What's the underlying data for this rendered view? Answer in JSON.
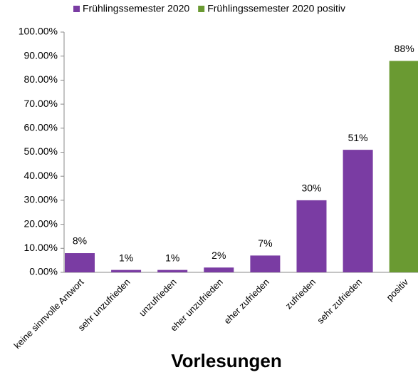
{
  "chart_data": {
    "type": "bar",
    "x_label": "Vorlesungen",
    "categories": [
      "keine sinnvolle Antwort",
      "sehr unzufrieden",
      "unzufrieden",
      "eher unzufrieden",
      "eher zufrieden",
      "zufrieden",
      "sehr zufrieden",
      "positiv"
    ],
    "series": [
      {
        "name": "Frühlingssemester 2020",
        "color": "#7a3ca3",
        "values": [
          8,
          1,
          1,
          2,
          7,
          30,
          51,
          null
        ],
        "value_labels": [
          "8%",
          "1%",
          "1%",
          "2%",
          "7%",
          "30%",
          "51%",
          null
        ]
      },
      {
        "name": "Frühlingssemester 2020 positiv",
        "color": "#6a9a32",
        "values": [
          null,
          null,
          null,
          null,
          null,
          null,
          null,
          88
        ],
        "value_labels": [
          null,
          null,
          null,
          null,
          null,
          null,
          null,
          "88%"
        ]
      }
    ],
    "ylim": [
      0,
      100
    ],
    "yticks": [
      {
        "value": 0,
        "label": "0.00%"
      },
      {
        "value": 10,
        "label": "10.00%"
      },
      {
        "value": 20,
        "label": "20.00%"
      },
      {
        "value": 30,
        "label": "30.00%"
      },
      {
        "value": 40,
        "label": "40.00%"
      },
      {
        "value": 50,
        "label": "50.00%"
      },
      {
        "value": 60,
        "label": "60.00%"
      },
      {
        "value": 70,
        "label": "70.00%"
      },
      {
        "value": 80,
        "label": "80.00%"
      },
      {
        "value": 90,
        "label": "90.00%"
      },
      {
        "value": 100,
        "label": "100.00%"
      }
    ],
    "grid": false,
    "legend": "top"
  }
}
